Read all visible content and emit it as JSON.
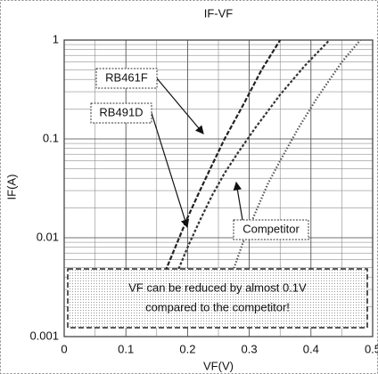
{
  "chart_data": {
    "type": "line",
    "title": "IF-VF",
    "xlabel": "VF(V)",
    "ylabel": "IF(A)",
    "xlim": [
      0,
      0.5
    ],
    "xticks": [
      0,
      0.1,
      0.2,
      0.3,
      0.4,
      0.5
    ],
    "ylim": [
      0.001,
      1
    ],
    "yticks": [
      0.001,
      0.01,
      0.1,
      1
    ],
    "ylog": true,
    "grid": true,
    "series": [
      {
        "name": "RB461F",
        "color": "#222222",
        "dash": "5 2",
        "x": [
          0.16,
          0.18,
          0.2,
          0.22,
          0.24,
          0.26,
          0.29,
          0.32,
          0.35
        ],
        "values": [
          0.004,
          0.008,
          0.016,
          0.03,
          0.055,
          0.1,
          0.22,
          0.5,
          1
        ]
      },
      {
        "name": "RB491D",
        "color": "#333333",
        "dash": "3 2",
        "x": [
          0.18,
          0.2,
          0.22,
          0.24,
          0.26,
          0.28,
          0.31,
          0.35,
          0.39,
          0.43
        ],
        "values": [
          0.004,
          0.008,
          0.015,
          0.027,
          0.045,
          0.07,
          0.13,
          0.28,
          0.55,
          1
        ]
      },
      {
        "name": "Competitor",
        "color": "#555555",
        "dash": "1.5 2",
        "x": [
          0.27,
          0.29,
          0.31,
          0.33,
          0.35,
          0.38,
          0.41,
          0.45,
          0.48
        ],
        "values": [
          0.004,
          0.009,
          0.018,
          0.035,
          0.06,
          0.13,
          0.26,
          0.6,
          1
        ]
      }
    ],
    "annotation": [
      "VF can be reduced by almost 0.1V",
      "compared to the competitor!"
    ]
  }
}
